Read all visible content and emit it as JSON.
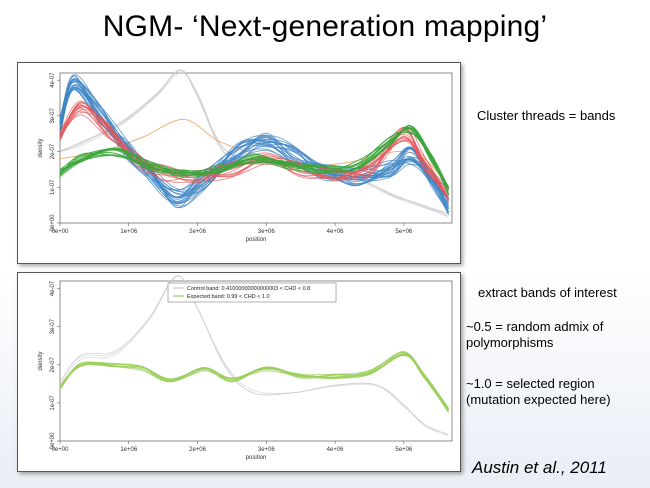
{
  "slide": {
    "title": "NGM- ‘Next-generation mapping’",
    "notes": {
      "cluster": "Cluster threads = bands",
      "extract": "extract bands of interest",
      "random": "~0.5 = random admix of polymorphisms",
      "selected": "~1.0 = selected region (mutation expected here)"
    },
    "citation": "Austin et al., 2011"
  },
  "chart_data": [
    {
      "type": "line",
      "xlabel": "position",
      "ylabel": "density",
      "x_ticks": [
        "0e+00",
        "1e+06",
        "2e+06",
        "3e+06",
        "4e+06",
        "5e+06"
      ],
      "y_ticks": [
        "0e+00",
        "1e-07",
        "2e-07",
        "3e-07",
        "4e-07"
      ],
      "xlim": [
        0,
        5700000
      ],
      "ylim": [
        0,
        4.2e-07
      ],
      "colors": {
        "blue": "#3f86c6",
        "red": "#e2575a",
        "green": "#3aa63a",
        "grey": "#c9c9cc",
        "orange": "#f0a15a"
      }
    },
    {
      "type": "line",
      "xlabel": "position",
      "ylabel": "density",
      "x_ticks": [
        "0e+00",
        "1e+06",
        "2e+06",
        "3e+06",
        "4e+06",
        "5e+06"
      ],
      "y_ticks": [
        "0e+00",
        "1e-07",
        "2e-07",
        "3e-07",
        "4e-07"
      ],
      "xlim": [
        0,
        5700000
      ],
      "ylim": [
        0,
        4.2e-07
      ],
      "legend": {
        "position": "top-center",
        "entries": [
          {
            "label": "Control band: 0.41000000000000003 < CHD < 0.8",
            "color": "#c9c9cc"
          },
          {
            "label": "Expected band: 0.99 < CHD < 1.0",
            "color": "#9ccf5e"
          }
        ]
      },
      "colors": {
        "green": "#9ccf5e",
        "grey": "#cfc9d2"
      }
    }
  ]
}
